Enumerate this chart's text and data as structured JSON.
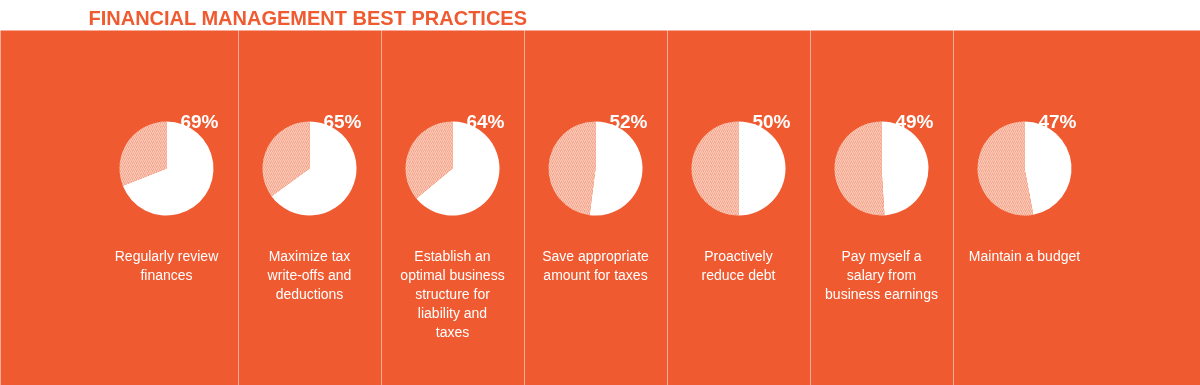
{
  "chart_data": [
    {
      "type": "other",
      "title": "FINANCIAL MANAGEMENT BEST PRACTICES"
    },
    {
      "type": "pie",
      "categories": [
        null,
        null
      ],
      "values": [
        69,
        31
      ],
      "colors": [
        "#ffffff",
        "#f6a58a"
      ],
      "value_labels": [
        "69%",
        null
      ],
      "xlabel": "Regularly review finances"
    },
    {
      "type": "pie",
      "categories": [
        null,
        null
      ],
      "values": [
        65,
        35
      ],
      "colors": [
        "#ffffff",
        "#f6a58a"
      ],
      "value_labels": [
        "65%",
        null
      ],
      "xlabel": "Maximize tax write-offs and deductions"
    },
    {
      "type": "pie",
      "categories": [
        null,
        null
      ],
      "values": [
        64,
        36
      ],
      "colors": [
        "#ffffff",
        "#f6a58a"
      ],
      "value_labels": [
        "64%",
        null
      ],
      "xlabel": "Establish an optimal business structure for liability and taxes"
    },
    {
      "type": "pie",
      "categories": [
        null,
        null
      ],
      "values": [
        52,
        48
      ],
      "colors": [
        "#ffffff",
        "#f6a58a"
      ],
      "value_labels": [
        "52%",
        null
      ],
      "xlabel": "Save appropriate amount for taxes"
    },
    {
      "type": "pie",
      "categories": [
        null,
        null
      ],
      "values": [
        50,
        50
      ],
      "colors": [
        "#ffffff",
        "#f6a58a"
      ],
      "value_labels": [
        "50%",
        null
      ],
      "xlabel": "Proactively reduce debt"
    },
    {
      "type": "pie",
      "categories": [
        null,
        null
      ],
      "values": [
        49,
        51
      ],
      "colors": [
        "#ffffff",
        "#f6a58a"
      ],
      "value_labels": [
        "49%",
        null
      ],
      "xlabel": "Pay myself a salary from business earnings"
    },
    {
      "type": "pie",
      "categories": [
        null,
        null
      ],
      "values": [
        47,
        53
      ],
      "colors": [
        "#ffffff",
        "#f6a58a"
      ],
      "value_labels": [
        "47%",
        null
      ],
      "xlabel": "Maintain a budget"
    }
  ]
}
